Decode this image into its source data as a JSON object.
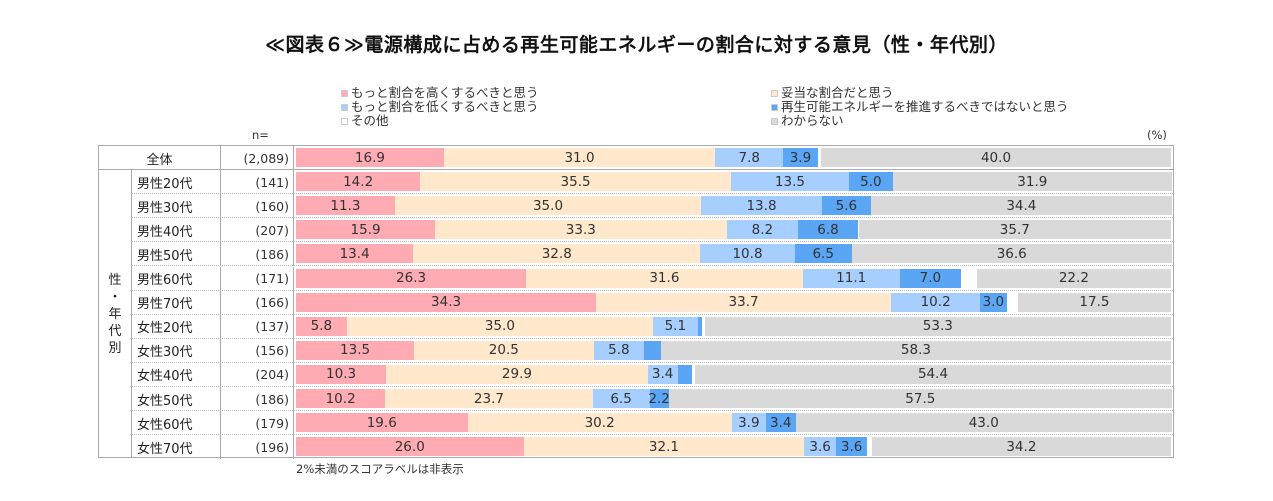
{
  "chart_data": {
    "type": "bar",
    "orientation": "horizontal-stacked-100",
    "title": "≪図表６≫電源構成に占める再生可能エネルギーの割合に対する意見（性・年代別）",
    "unit_label": "(%)",
    "n_label": "n=",
    "group_label": [
      "性",
      "・",
      "年",
      "代",
      "別"
    ],
    "note": "2%未満のスコアラベルは非表示",
    "label_threshold": 2,
    "xlim": [
      0,
      100
    ],
    "legend": [
      {
        "name": "もっと割合を高くするべきと思う",
        "color": "#FFABB3",
        "column": "left"
      },
      {
        "name": "もっと割合を低くするべきと思う",
        "color": "#A6CEFF",
        "column": "left"
      },
      {
        "name": "その他",
        "color": "#FFFFFF",
        "column": "left"
      },
      {
        "name": "妥当な割合だと思う",
        "color": "#FFE8CC",
        "column": "right"
      },
      {
        "name": "再生可能エネルギーを推進するべきではないと思う",
        "color": "#5BA5F5",
        "column": "right"
      },
      {
        "name": "わからない",
        "color": "#D9D9D9",
        "column": "right"
      }
    ],
    "series_order": [
      "もっと割合を高くするべきと思う",
      "妥当な割合だと思う",
      "もっと割合を低くするべきと思う",
      "再生可能エネルギーを推進するべきではないと思う",
      "その他",
      "わからない"
    ],
    "series_colors": [
      "#FFABB3",
      "#FFE8CC",
      "#A6CEFF",
      "#5BA5F5",
      "#FFFFFF",
      "#D9D9D9"
    ],
    "categories": [
      {
        "label": "全体",
        "n": "(2,089)",
        "total": true,
        "values": [
          16.9,
          31.0,
          7.8,
          3.9,
          0.4,
          40.0
        ]
      },
      {
        "label": "男性20代",
        "n": "(141)",
        "values": [
          14.2,
          35.5,
          13.5,
          5.0,
          0.0,
          31.9
        ]
      },
      {
        "label": "男性30代",
        "n": "(160)",
        "values": [
          11.3,
          35.0,
          13.8,
          5.6,
          0.0,
          34.4
        ]
      },
      {
        "label": "男性40代",
        "n": "(207)",
        "values": [
          15.9,
          33.3,
          8.2,
          6.8,
          0.1,
          35.7
        ]
      },
      {
        "label": "男性50代",
        "n": "(186)",
        "values": [
          13.4,
          32.8,
          10.8,
          6.5,
          0.0,
          36.6
        ]
      },
      {
        "label": "男性60代",
        "n": "(171)",
        "values": [
          26.3,
          31.6,
          11.1,
          7.0,
          1.8,
          22.2
        ]
      },
      {
        "label": "男性70代",
        "n": "(166)",
        "values": [
          34.3,
          33.7,
          10.2,
          3.0,
          1.3,
          17.5
        ]
      },
      {
        "label": "女性20代",
        "n": "(137)",
        "values": [
          5.8,
          35.0,
          5.1,
          0.5,
          0.3,
          53.3
        ]
      },
      {
        "label": "女性30代",
        "n": "(156)",
        "values": [
          13.5,
          20.5,
          5.8,
          1.9,
          0.0,
          58.3
        ]
      },
      {
        "label": "女性40代",
        "n": "(204)",
        "values": [
          10.3,
          29.9,
          3.4,
          1.6,
          0.4,
          54.4
        ]
      },
      {
        "label": "女性50代",
        "n": "(186)",
        "values": [
          10.2,
          23.7,
          6.5,
          2.2,
          0.0,
          57.5
        ]
      },
      {
        "label": "女性60代",
        "n": "(179)",
        "values": [
          19.6,
          30.2,
          3.9,
          3.4,
          0.0,
          43.0
        ]
      },
      {
        "label": "女性70代",
        "n": "(196)",
        "values": [
          26.0,
          32.1,
          3.6,
          3.6,
          0.5,
          34.2
        ]
      }
    ]
  }
}
